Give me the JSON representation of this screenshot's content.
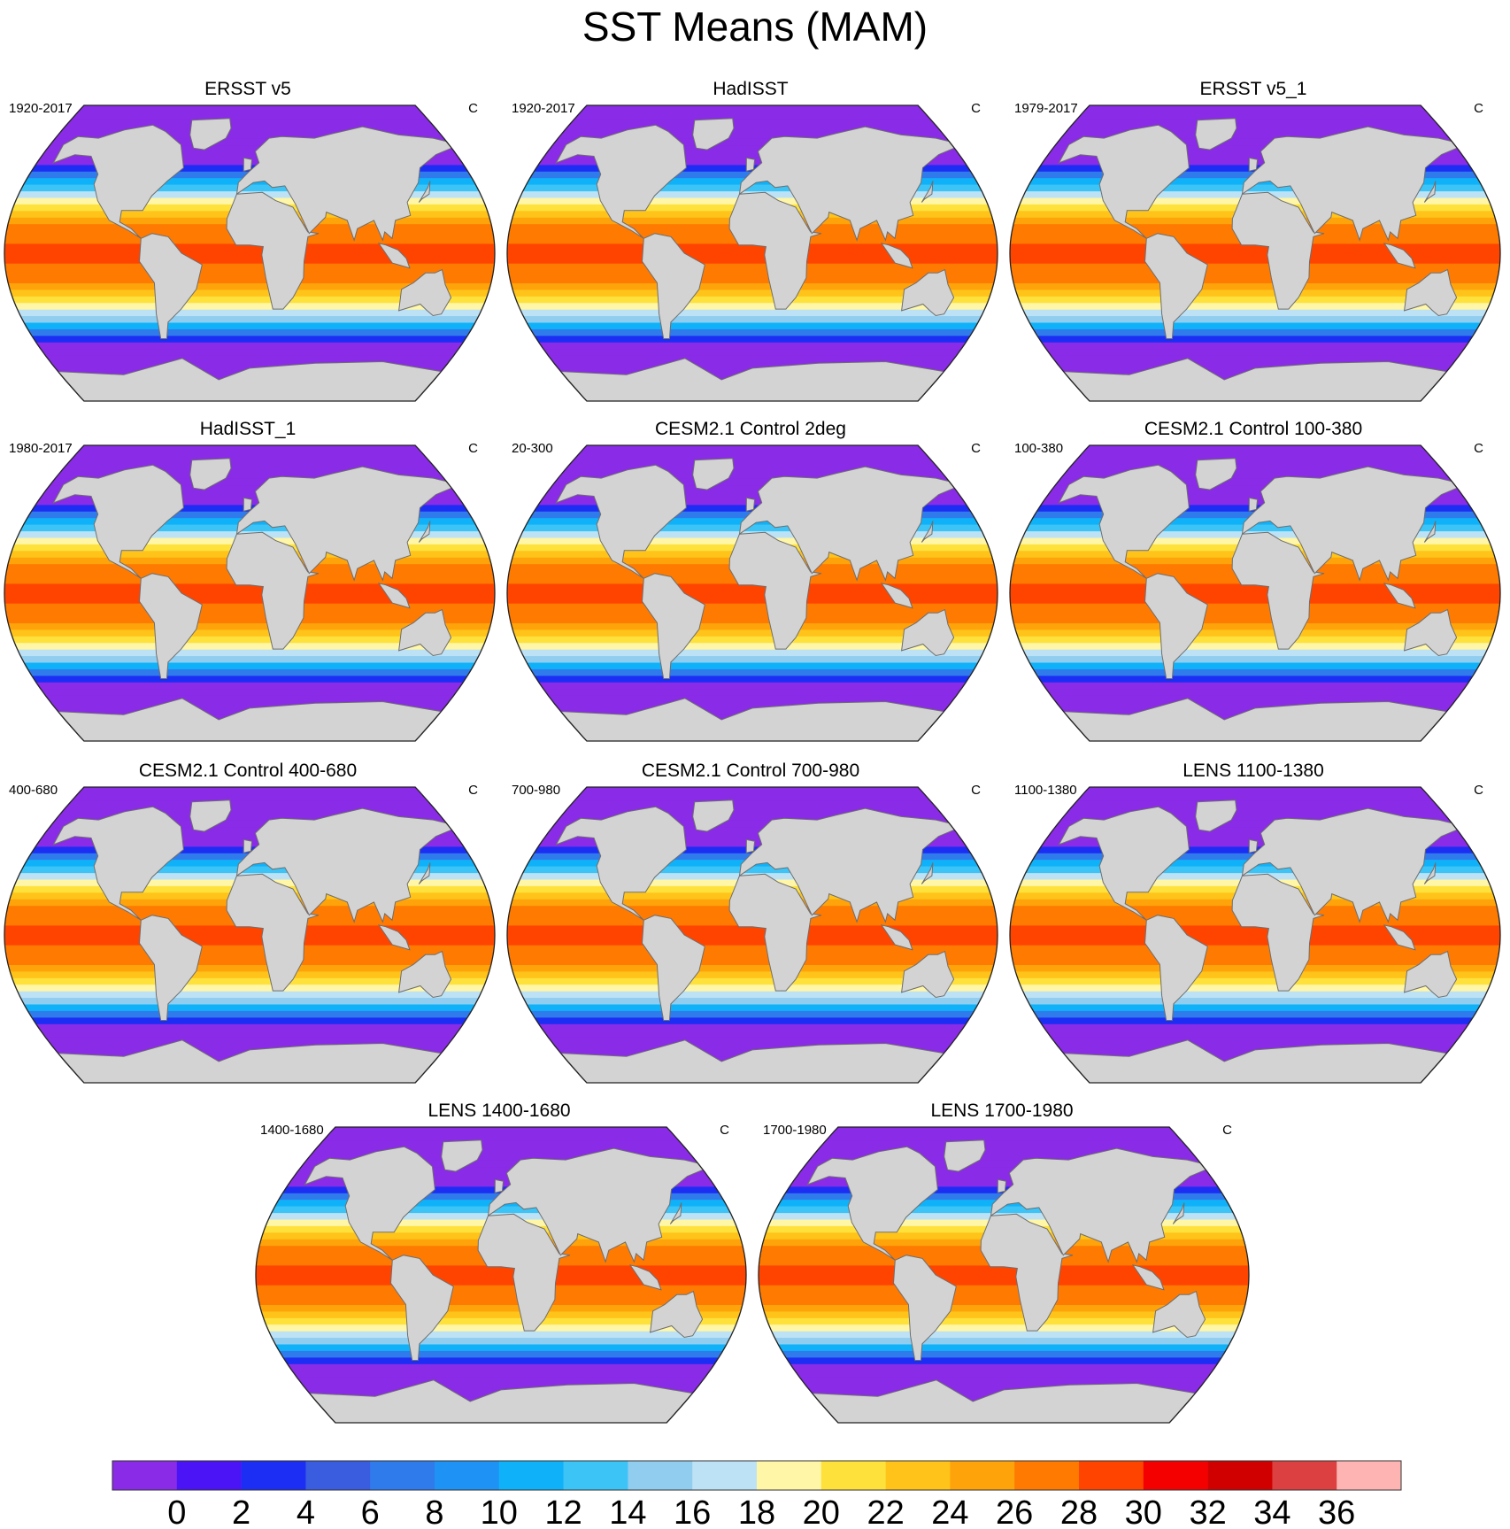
{
  "title": "SST Means (MAM)",
  "chart_data": {
    "type": "heatmap",
    "title": "SST Means (MAM)",
    "units": "C",
    "projection": "robinson",
    "panels": [
      {
        "name": "ERSST v5",
        "period": "1920-2017",
        "units": "C"
      },
      {
        "name": "HadISST",
        "period": "1920-2017",
        "units": "C"
      },
      {
        "name": "ERSST v5_1",
        "period": "1979-2017",
        "units": "C"
      },
      {
        "name": "HadISST_1",
        "period": "1980-2017",
        "units": "C"
      },
      {
        "name": "CESM2.1 Control 2deg",
        "period": "20-300",
        "units": "C"
      },
      {
        "name": "CESM2.1 Control 100-380",
        "period": "100-380",
        "units": "C"
      },
      {
        "name": "CESM2.1 Control 400-680",
        "period": "400-680",
        "units": "C"
      },
      {
        "name": "CESM2.1 Control 700-980",
        "period": "700-980",
        "units": "C"
      },
      {
        "name": "LENS 1100-1380",
        "period": "1100-1380",
        "units": "C"
      },
      {
        "name": "LENS 1400-1680",
        "period": "1400-1680",
        "units": "C"
      },
      {
        "name": "LENS 1700-1980",
        "period": "1700-1980",
        "units": "C"
      }
    ],
    "colorbar": {
      "levels": [
        0,
        2,
        4,
        6,
        8,
        10,
        12,
        14,
        16,
        18,
        20,
        22,
        24,
        26,
        28,
        30,
        32,
        34,
        36
      ],
      "tick_labels": [
        "0",
        "2",
        "4",
        "6",
        "8",
        "10",
        "12",
        "14",
        "16",
        "18",
        "20",
        "22",
        "24",
        "26",
        "28",
        "30",
        "32",
        "34",
        "36"
      ],
      "colors": [
        "#8a2be8",
        "#4a14f6",
        "#1c2ef4",
        "#3a5de0",
        "#2f7bec",
        "#1e93f5",
        "#0fb2f9",
        "#3dc4f7",
        "#90cdef",
        "#bde2f6",
        "#fff6a8",
        "#ffe13c",
        "#ffc31a",
        "#ffa30a",
        "#ff7a00",
        "#ff4400",
        "#f40000",
        "#d00000",
        "#dc4040",
        "#ffb4b4"
      ]
    }
  }
}
